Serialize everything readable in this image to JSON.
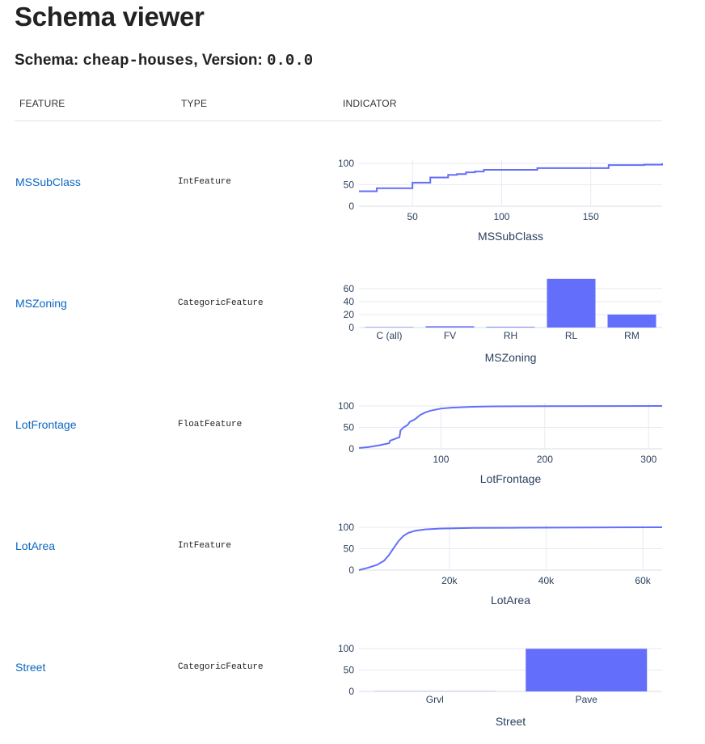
{
  "page": {
    "title": "Schema viewer",
    "schema_prefix": "Schema: ",
    "schema_name": "cheap-houses",
    "version_prefix": ", Version: ",
    "version": "0.0.0"
  },
  "table": {
    "headers": [
      "FEATURE",
      "TYPE",
      "INDICATOR"
    ]
  },
  "colors": {
    "accent": "#636efa",
    "link": "#0a66c2",
    "grid": "#e6eaf1",
    "tick": "#2a3f5f"
  },
  "features": [
    {
      "name": "MSSubClass",
      "type": "IntFeature"
    },
    {
      "name": "MSZoning",
      "type": "CategoricFeature"
    },
    {
      "name": "LotFrontage",
      "type": "FloatFeature"
    },
    {
      "name": "LotArea",
      "type": "IntFeature"
    },
    {
      "name": "Street",
      "type": "CategoricFeature"
    }
  ],
  "chart_data": [
    {
      "type": "line",
      "shape": "step",
      "xlabel": "MSSubClass",
      "ylabel": "",
      "xlim": [
        20,
        190
      ],
      "ylim": [
        0,
        100
      ],
      "xticks": [
        50,
        100,
        150
      ],
      "yticks": [
        0,
        50,
        100
      ],
      "x": [
        20,
        30,
        50,
        60,
        70,
        75,
        80,
        85,
        90,
        120,
        160,
        180,
        190
      ],
      "y": [
        35,
        42,
        55,
        67,
        73,
        75,
        79,
        81,
        85,
        89,
        96,
        97,
        100
      ]
    },
    {
      "type": "bar",
      "xlabel": "MSZoning",
      "ylabel": "",
      "ylim": [
        0,
        76
      ],
      "yticks": [
        0,
        20,
        40,
        60
      ],
      "categories": [
        "C (all)",
        "FV",
        "RH",
        "RL",
        "RM"
      ],
      "values": [
        0.7,
        2,
        1,
        75,
        20
      ]
    },
    {
      "type": "line",
      "xlabel": "LotFrontage",
      "ylabel": "",
      "xlim": [
        21,
        313
      ],
      "ylim": [
        0,
        100
      ],
      "xticks": [
        100,
        200,
        300
      ],
      "yticks": [
        0,
        50,
        100
      ],
      "x": [
        21,
        30,
        40,
        50,
        51,
        60,
        61,
        64,
        68,
        70,
        75,
        80,
        85,
        90,
        100,
        110,
        130,
        150,
        200,
        313
      ],
      "y": [
        2,
        4,
        8,
        13,
        19,
        27,
        43,
        50,
        56,
        63,
        69,
        79,
        85,
        89,
        94,
        96,
        98,
        99,
        99.5,
        100
      ]
    },
    {
      "type": "line",
      "xlabel": "LotArea",
      "ylabel": "",
      "xlim": [
        1300,
        64000
      ],
      "ylim": [
        0,
        100
      ],
      "xticks": [
        20000,
        40000,
        60000
      ],
      "xticklabels": [
        "20k",
        "40k",
        "60k"
      ],
      "yticks": [
        0,
        50,
        100
      ],
      "x": [
        1300,
        3000,
        5000,
        6500,
        7500,
        8500,
        9500,
        10500,
        11500,
        13000,
        15000,
        18000,
        25000,
        35000,
        50000,
        64000
      ],
      "y": [
        0,
        5,
        12,
        22,
        35,
        52,
        68,
        80,
        87,
        92,
        95,
        97,
        98.5,
        99,
        99.5,
        100
      ]
    },
    {
      "type": "bar",
      "xlabel": "Street",
      "ylabel": "",
      "ylim": [
        0,
        100
      ],
      "yticks": [
        0,
        50,
        100
      ],
      "categories": [
        "Grvl",
        "Pave"
      ],
      "values": [
        0.5,
        99.5
      ]
    }
  ]
}
